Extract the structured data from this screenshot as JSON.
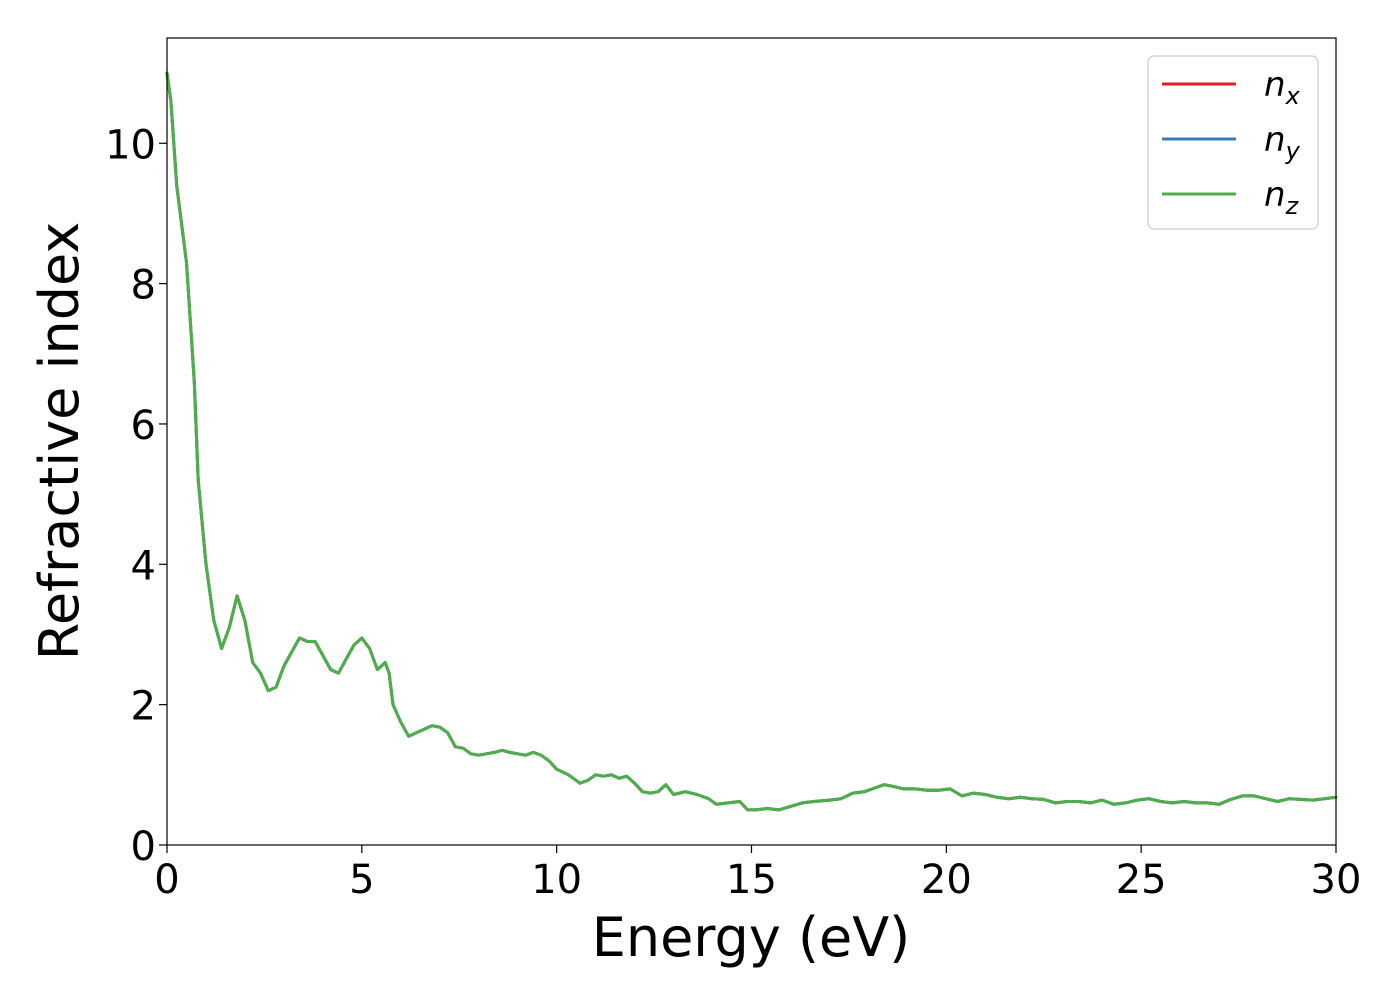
{
  "chart_data": {
    "type": "line",
    "xlabel": "Energy (eV)",
    "ylabel": "Refractive index",
    "xlim": [
      0,
      30
    ],
    "ylim": [
      0,
      11.5
    ],
    "xticks": [
      0,
      5,
      10,
      15,
      20,
      25,
      30
    ],
    "yticks": [
      0,
      2,
      4,
      6,
      8,
      10
    ],
    "grid": false,
    "legend_position": "top-right",
    "series": [
      {
        "name": "n",
        "subscript": "x",
        "color": "#e41a1c",
        "x": [
          0,
          0.1,
          0.25,
          0.5,
          0.7,
          0.8,
          1.0,
          1.2,
          1.4,
          1.6,
          1.8,
          2.0,
          2.2,
          2.4,
          2.6,
          2.8,
          3.0,
          3.2,
          3.4,
          3.6,
          3.8,
          4.0,
          4.2,
          4.4,
          4.6,
          4.8,
          5.0,
          5.2,
          5.4,
          5.5,
          5.6,
          5.7,
          5.8,
          6.0,
          6.2,
          6.4,
          6.6,
          6.8,
          7.0,
          7.2,
          7.4,
          7.6,
          7.8,
          8.0,
          8.2,
          8.4,
          8.6,
          8.8,
          9.0,
          9.2,
          9.4,
          9.6,
          9.8,
          10.0,
          10.3,
          10.6,
          10.8,
          11.0,
          11.2,
          11.4,
          11.6,
          11.8,
          12.0,
          12.2,
          12.4,
          12.6,
          12.8,
          13.0,
          13.3,
          13.6,
          13.9,
          14.1,
          14.4,
          14.7,
          14.9,
          15.1,
          15.4,
          15.7,
          16.0,
          16.3,
          16.6,
          17.0,
          17.3,
          17.6,
          17.9,
          18.2,
          18.4,
          18.6,
          18.9,
          19.2,
          19.5,
          19.8,
          20.1,
          20.4,
          20.7,
          21.0,
          21.3,
          21.6,
          21.9,
          22.2,
          22.5,
          22.8,
          23.1,
          23.4,
          23.7,
          24.0,
          24.3,
          24.6,
          24.9,
          25.2,
          25.5,
          25.8,
          26.1,
          26.4,
          26.7,
          27.0,
          27.3,
          27.6,
          27.9,
          28.2,
          28.5,
          28.8,
          29.1,
          29.4,
          29.7,
          30.0
        ],
        "y": [
          11.0,
          10.6,
          9.4,
          8.3,
          6.6,
          5.2,
          4.0,
          3.2,
          2.8,
          3.1,
          3.55,
          3.2,
          2.6,
          2.45,
          2.2,
          2.25,
          2.55,
          2.75,
          2.95,
          2.9,
          2.9,
          2.7,
          2.5,
          2.45,
          2.65,
          2.85,
          2.95,
          2.8,
          2.5,
          2.55,
          2.6,
          2.45,
          2.0,
          1.75,
          1.55,
          1.6,
          1.65,
          1.7,
          1.68,
          1.6,
          1.4,
          1.38,
          1.3,
          1.28,
          1.3,
          1.32,
          1.35,
          1.32,
          1.3,
          1.28,
          1.32,
          1.28,
          1.2,
          1.08,
          1.0,
          0.88,
          0.92,
          1.0,
          0.98,
          1.0,
          0.95,
          0.98,
          0.88,
          0.76,
          0.74,
          0.76,
          0.86,
          0.72,
          0.76,
          0.72,
          0.66,
          0.58,
          0.6,
          0.62,
          0.5,
          0.5,
          0.52,
          0.5,
          0.55,
          0.6,
          0.62,
          0.64,
          0.66,
          0.74,
          0.76,
          0.82,
          0.86,
          0.84,
          0.8,
          0.8,
          0.78,
          0.78,
          0.8,
          0.7,
          0.74,
          0.72,
          0.68,
          0.66,
          0.68,
          0.66,
          0.65,
          0.6,
          0.62,
          0.62,
          0.6,
          0.64,
          0.58,
          0.6,
          0.64,
          0.66,
          0.62,
          0.6,
          0.62,
          0.6,
          0.6,
          0.58,
          0.65,
          0.7,
          0.7,
          0.66,
          0.62,
          0.66,
          0.65,
          0.64,
          0.66,
          0.68
        ]
      },
      {
        "name": "n",
        "subscript": "y",
        "color": "#377eb8",
        "same_as": "n_x"
      },
      {
        "name": "n",
        "subscript": "z",
        "color": "#4daf4a",
        "same_as": "n_x"
      }
    ]
  }
}
